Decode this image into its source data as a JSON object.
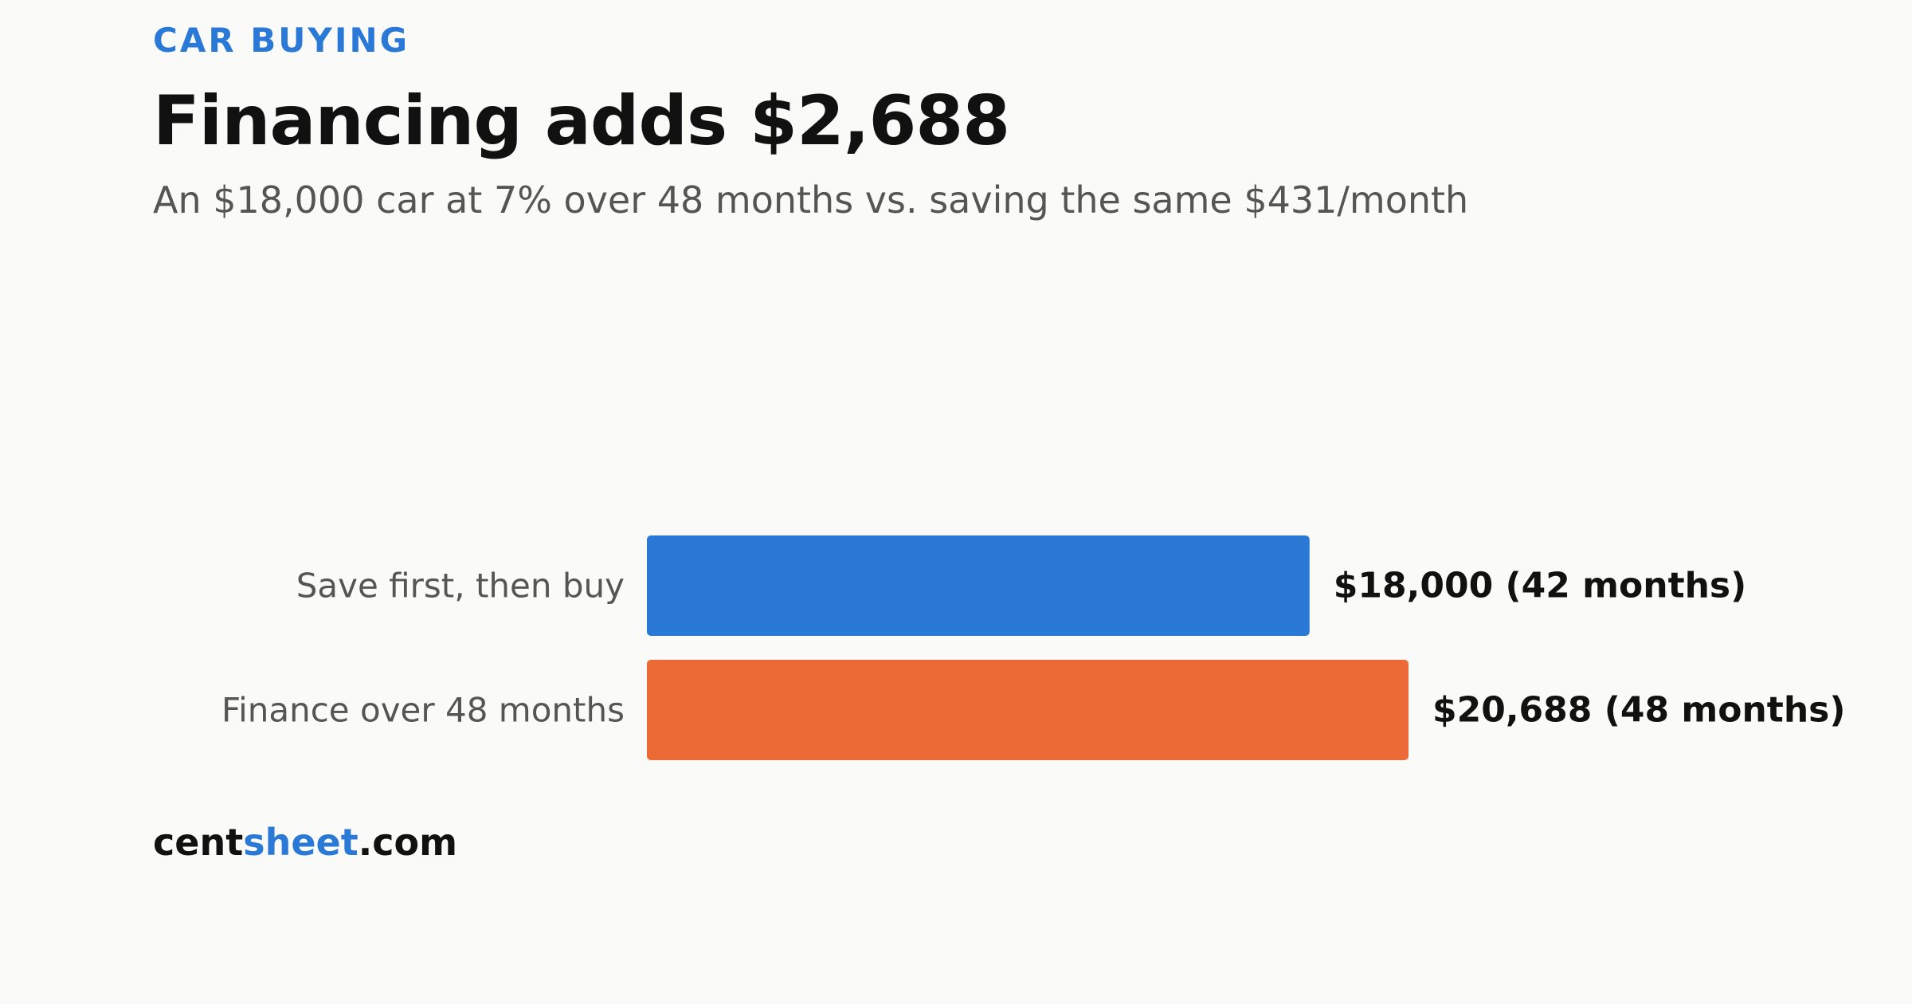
{
  "header": {
    "eyebrow": "CAR BUYING",
    "title": "Financing adds $2,688",
    "subtitle": "An $18,000 car at 7% over 48 months vs. saving the same $431/month"
  },
  "chart_data": {
    "type": "bar",
    "orientation": "horizontal",
    "categories": [
      "Save first, then buy",
      "Finance over 48 months"
    ],
    "values": [
      18000,
      20688
    ],
    "months": [
      42,
      48
    ],
    "data_labels": [
      "$18,000 (42 months)",
      "$20,688 (48 months)"
    ],
    "colors": [
      "#2a79d6",
      "#ec6a36"
    ],
    "xlim": [
      0,
      20688
    ],
    "grid": false,
    "legend": "none"
  },
  "brand": {
    "part1": "cent",
    "part2": "sheet",
    "part3": ".com",
    "accent_color": "#2a79d6"
  },
  "colors": {
    "accent": "#2a79d6",
    "text": "#111111",
    "muted": "#555555",
    "background": "#fafaf8"
  }
}
